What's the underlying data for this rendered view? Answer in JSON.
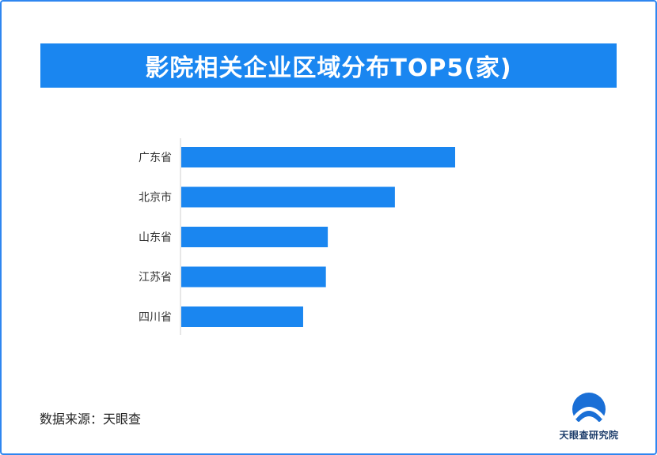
{
  "title": "影院相关企业区域分布TOP5(家)",
  "source": "数据来源：天眼查",
  "logo_text": "天眼查研究院",
  "colors": {
    "bar": "#1a86f0",
    "title_bg": "#1a86f0",
    "border": "#2f86f0"
  },
  "chart_data": {
    "type": "bar",
    "orientation": "horizontal",
    "title": "影院相关企业区域分布TOP5(家)",
    "categories": [
      "广东省",
      "北京市",
      "山东省",
      "江苏省",
      "四川省"
    ],
    "values": [
      100,
      78,
      53.5,
      52.8,
      44.5
    ],
    "xlim": [
      0,
      100
    ],
    "grid": false,
    "legend": "none"
  }
}
